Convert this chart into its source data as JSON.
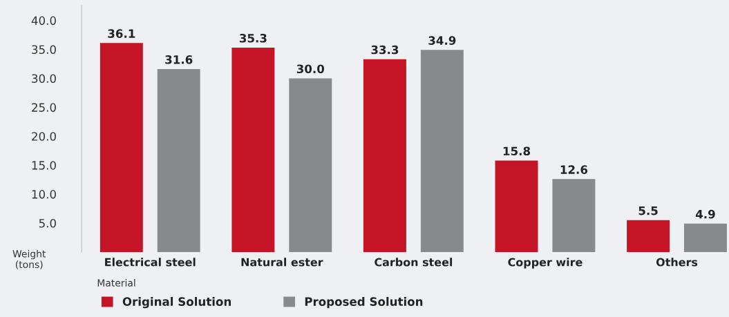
{
  "chart_data": {
    "type": "bar",
    "categories": [
      "Electrical steel",
      "Natural ester",
      "Carbon steel",
      "Copper wire",
      "Others"
    ],
    "series": [
      {
        "name": "Original Solution",
        "color": "#c41425",
        "values": [
          36.1,
          35.3,
          33.3,
          15.8,
          5.5
        ],
        "value_labels": [
          "36.1",
          "35.3",
          "33.3",
          "15.8",
          "5.5"
        ]
      },
      {
        "name": "Proposed Solution",
        "color": "#87898d",
        "values": [
          31.6,
          30.0,
          34.9,
          12.6,
          4.9
        ],
        "value_labels": [
          "31.6",
          "30.0",
          "34.9",
          "12.6",
          "4.9"
        ]
      }
    ],
    "xlabel": "Material",
    "ylabel": "Weight\n(tons)",
    "ylim": [
      0,
      42.6
    ],
    "yticks": [
      {
        "value": 5,
        "label": "5.0"
      },
      {
        "value": 10,
        "label": "10.0"
      },
      {
        "value": 15,
        "label": "15.0"
      },
      {
        "value": 20,
        "label": "20.0"
      },
      {
        "value": 25,
        "label": "25.0"
      },
      {
        "value": 30,
        "label": "30.0"
      },
      {
        "value": 35,
        "label": "35.0"
      },
      {
        "value": 40,
        "label": "40.0"
      }
    ],
    "grid": false,
    "legend": "bottom"
  }
}
